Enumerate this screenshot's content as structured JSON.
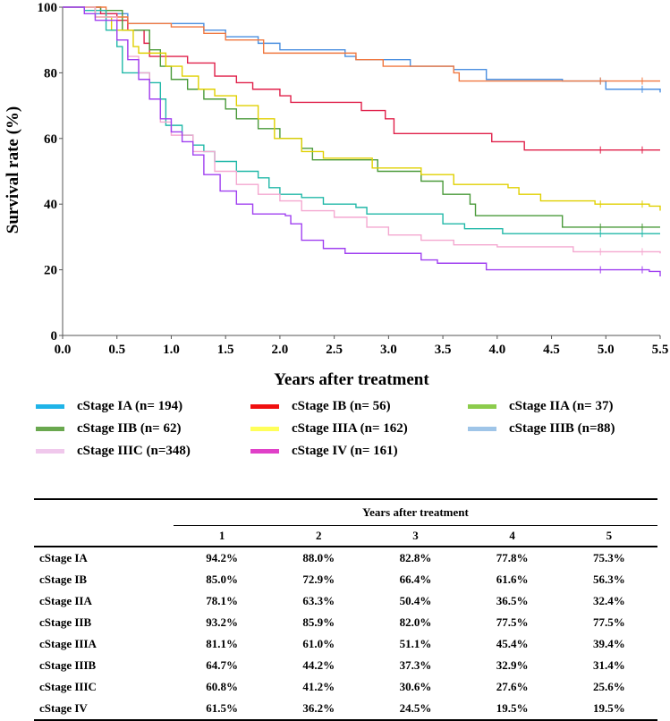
{
  "chart_data": {
    "type": "line",
    "subtype": "kaplan-meier step",
    "xlabel": "Years after treatment",
    "ylabel": "Survival rate (%)",
    "xlim": [
      0,
      5.5
    ],
    "ylim": [
      0,
      100
    ],
    "xticks": [
      "0.0",
      "0.5",
      "1.0",
      "1.5",
      "2.0",
      "2.5",
      "3.0",
      "3.5",
      "4.0",
      "4.5",
      "5.0",
      "5.5"
    ],
    "yticks": [
      "0",
      "20",
      "40",
      "60",
      "80",
      "100"
    ],
    "grid": false,
    "legend_placement": "bottom",
    "series": [
      {
        "name": "cStage IA (n= 194)",
        "legend_color": "#1fb4e8",
        "line_color": "#4a8fe0",
        "points": [
          [
            0,
            100
          ],
          [
            0.3,
            98
          ],
          [
            0.6,
            95
          ],
          [
            1.3,
            93
          ],
          [
            1.5,
            91
          ],
          [
            1.8,
            89
          ],
          [
            2.0,
            87
          ],
          [
            2.6,
            85
          ],
          [
            2.7,
            84
          ],
          [
            3.2,
            82
          ],
          [
            3.6,
            81
          ],
          [
            3.9,
            78
          ],
          [
            4.6,
            77.5
          ],
          [
            5.0,
            75
          ],
          [
            5.5,
            74
          ]
        ]
      },
      {
        "name": "cStage IB (n= 56)",
        "legend_color": "#f01010",
        "line_color": "#e0204a",
        "points": [
          [
            0,
            100
          ],
          [
            0.35,
            98
          ],
          [
            0.5,
            96
          ],
          [
            0.6,
            93
          ],
          [
            0.75,
            89
          ],
          [
            0.8,
            85
          ],
          [
            1.15,
            83
          ],
          [
            1.4,
            79
          ],
          [
            1.6,
            77
          ],
          [
            1.75,
            75
          ],
          [
            2.0,
            73
          ],
          [
            2.1,
            71
          ],
          [
            2.75,
            68.5
          ],
          [
            2.97,
            66
          ],
          [
            3.05,
            61.5
          ],
          [
            3.95,
            59
          ],
          [
            4.25,
            56.5
          ],
          [
            5.5,
            56.5
          ]
        ]
      },
      {
        "name": "cStage IIA (n= 37)",
        "legend_color": "#8ccc4c",
        "line_color": "#4a9a3a",
        "points": [
          [
            0,
            100
          ],
          [
            0.35,
            99
          ],
          [
            0.55,
            93
          ],
          [
            0.8,
            87
          ],
          [
            0.9,
            82
          ],
          [
            1.0,
            78
          ],
          [
            1.15,
            75
          ],
          [
            1.3,
            72
          ],
          [
            1.5,
            69
          ],
          [
            1.6,
            66
          ],
          [
            1.8,
            63
          ],
          [
            2.0,
            60
          ],
          [
            2.2,
            57
          ],
          [
            2.3,
            53.5
          ],
          [
            2.9,
            50
          ],
          [
            3.3,
            47
          ],
          [
            3.5,
            43
          ],
          [
            3.75,
            40
          ],
          [
            3.8,
            36.5
          ],
          [
            4.6,
            33
          ],
          [
            5.5,
            33
          ]
        ]
      },
      {
        "name": "cStage IIB (n= 62)",
        "legend_color": "#6aa84f",
        "line_color": "#f07840",
        "points": [
          [
            0,
            100
          ],
          [
            0.4,
            97
          ],
          [
            0.6,
            95
          ],
          [
            1.0,
            94
          ],
          [
            1.3,
            92
          ],
          [
            1.5,
            90
          ],
          [
            1.85,
            86
          ],
          [
            2.7,
            84
          ],
          [
            2.95,
            82
          ],
          [
            3.6,
            80
          ],
          [
            3.65,
            77.5
          ],
          [
            5.5,
            77.5
          ]
        ]
      },
      {
        "name": "cStage IIIA (n= 162)",
        "legend_color": "#ffff5a",
        "line_color": "#e0d000",
        "points": [
          [
            0,
            100
          ],
          [
            0.3,
            97
          ],
          [
            0.45,
            93
          ],
          [
            0.65,
            88
          ],
          [
            0.7,
            86
          ],
          [
            0.95,
            82
          ],
          [
            1.1,
            79
          ],
          [
            1.25,
            75
          ],
          [
            1.4,
            73
          ],
          [
            1.6,
            70
          ],
          [
            1.8,
            66
          ],
          [
            1.95,
            60
          ],
          [
            2.2,
            56
          ],
          [
            2.4,
            54
          ],
          [
            2.85,
            51
          ],
          [
            3.3,
            49
          ],
          [
            3.6,
            46
          ],
          [
            4.1,
            45
          ],
          [
            4.2,
            43
          ],
          [
            4.4,
            41
          ],
          [
            4.9,
            40
          ],
          [
            5.4,
            39.4
          ],
          [
            5.5,
            38
          ]
        ]
      },
      {
        "name": "cStage IIIB (n=88)",
        "legend_color": "#9fc5e8",
        "line_color": "#20b8a8",
        "points": [
          [
            0,
            100
          ],
          [
            0.2,
            99
          ],
          [
            0.4,
            93
          ],
          [
            0.5,
            88
          ],
          [
            0.55,
            80
          ],
          [
            0.8,
            77
          ],
          [
            0.9,
            72
          ],
          [
            0.95,
            64
          ],
          [
            1.1,
            61
          ],
          [
            1.2,
            58
          ],
          [
            1.3,
            56
          ],
          [
            1.4,
            53
          ],
          [
            1.6,
            50
          ],
          [
            1.8,
            48
          ],
          [
            1.9,
            45
          ],
          [
            2.0,
            43
          ],
          [
            2.2,
            42
          ],
          [
            2.4,
            40
          ],
          [
            2.7,
            39
          ],
          [
            2.8,
            37
          ],
          [
            3.5,
            34
          ],
          [
            3.7,
            32.5
          ],
          [
            4.05,
            31
          ],
          [
            5.5,
            31
          ]
        ]
      },
      {
        "name": "cStage IIIC (n=348)",
        "legend_color": "#f0c8ec",
        "line_color": "#f4a8d0",
        "points": [
          [
            0,
            100
          ],
          [
            0.3,
            97
          ],
          [
            0.5,
            90
          ],
          [
            0.6,
            85
          ],
          [
            0.7,
            80
          ],
          [
            0.8,
            72
          ],
          [
            0.9,
            65
          ],
          [
            1.0,
            61
          ],
          [
            1.2,
            56
          ],
          [
            1.4,
            50
          ],
          [
            1.6,
            46
          ],
          [
            1.8,
            43
          ],
          [
            2.0,
            41
          ],
          [
            2.2,
            38
          ],
          [
            2.5,
            36
          ],
          [
            2.8,
            33
          ],
          [
            3.0,
            30.6
          ],
          [
            3.3,
            29
          ],
          [
            3.6,
            27.6
          ],
          [
            4.0,
            27
          ],
          [
            4.7,
            25.5
          ],
          [
            5.5,
            25
          ]
        ]
      },
      {
        "name": "cStage IV (n= 161)",
        "legend_color": "#e040c8",
        "line_color": "#a040f0",
        "points": [
          [
            0,
            100
          ],
          [
            0.2,
            98
          ],
          [
            0.3,
            96
          ],
          [
            0.5,
            90
          ],
          [
            0.6,
            84
          ],
          [
            0.7,
            78
          ],
          [
            0.8,
            72
          ],
          [
            0.9,
            66
          ],
          [
            1.0,
            62
          ],
          [
            1.1,
            59
          ],
          [
            1.2,
            55
          ],
          [
            1.3,
            49
          ],
          [
            1.45,
            44
          ],
          [
            1.6,
            40
          ],
          [
            1.75,
            37
          ],
          [
            2.05,
            36.5
          ],
          [
            2.1,
            34
          ],
          [
            2.2,
            29
          ],
          [
            2.4,
            26.5
          ],
          [
            2.6,
            25
          ],
          [
            3.3,
            23
          ],
          [
            3.45,
            22
          ],
          [
            3.9,
            20
          ],
          [
            5.4,
            19.5
          ],
          [
            5.5,
            18
          ]
        ]
      }
    ]
  },
  "table": {
    "group_header": "Years after treatment",
    "columns": [
      "1",
      "2",
      "3",
      "4",
      "5"
    ],
    "rows": [
      {
        "label": "cStage IA",
        "values": [
          "94.2%",
          "88.0%",
          "82.8%",
          "77.8%",
          "75.3%"
        ]
      },
      {
        "label": "cStage IB",
        "values": [
          "85.0%",
          "72.9%",
          "66.4%",
          "61.6%",
          "56.3%"
        ]
      },
      {
        "label": "cStage IIA",
        "values": [
          "78.1%",
          "63.3%",
          "50.4%",
          "36.5%",
          "32.4%"
        ]
      },
      {
        "label": "cStage IIB",
        "values": [
          "93.2%",
          "85.9%",
          "82.0%",
          "77.5%",
          "77.5%"
        ]
      },
      {
        "label": "cStage IIIA",
        "values": [
          "81.1%",
          "61.0%",
          "51.1%",
          "45.4%",
          "39.4%"
        ]
      },
      {
        "label": "cStage IIIB",
        "values": [
          "64.7%",
          "44.2%",
          "37.3%",
          "32.9%",
          "31.4%"
        ]
      },
      {
        "label": "cStage IIIC",
        "values": [
          "60.8%",
          "41.2%",
          "30.6%",
          "27.6%",
          "25.6%"
        ]
      },
      {
        "label": "cStage IV",
        "values": [
          "61.5%",
          "36.2%",
          "24.5%",
          "19.5%",
          "19.5%"
        ]
      }
    ]
  }
}
